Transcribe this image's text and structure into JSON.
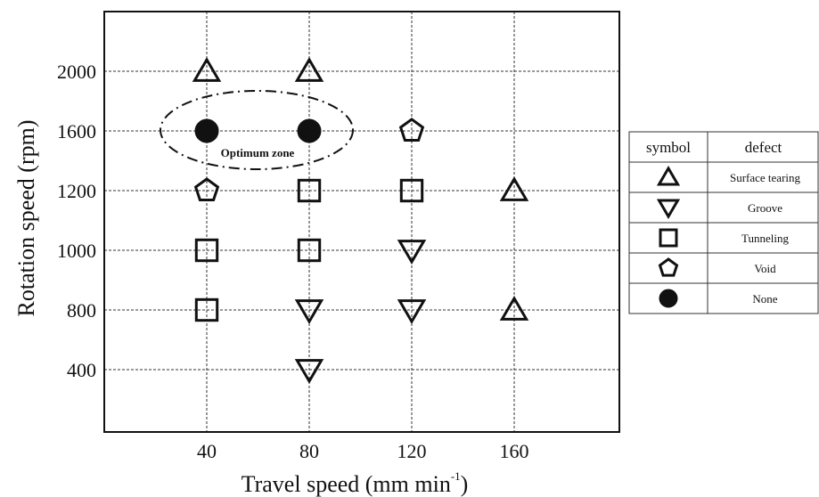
{
  "chart_data": {
    "type": "scatter",
    "xlabel": "Travel speed (mm min-1)",
    "xlabel_main": "Travel speed (mm min",
    "xlabel_sup": "-1",
    "xlabel_close": ")",
    "ylabel": "Rotation speed (rpm)",
    "x_ticks": [
      40,
      80,
      120,
      160
    ],
    "y_ticks": [
      2000,
      1600,
      1200,
      1000,
      800,
      400
    ],
    "grid": true,
    "series": [
      {
        "name": "Surface tearing",
        "marker": "triangle-up",
        "points": [
          [
            40,
            2000
          ],
          [
            80,
            2000
          ],
          [
            160,
            1200
          ],
          [
            160,
            800
          ]
        ]
      },
      {
        "name": "Groove",
        "marker": "triangle-down",
        "points": [
          [
            80,
            800
          ],
          [
            80,
            400
          ],
          [
            120,
            1000
          ],
          [
            120,
            800
          ]
        ]
      },
      {
        "name": "Tunneling",
        "marker": "square",
        "points": [
          [
            40,
            1000
          ],
          [
            40,
            800
          ],
          [
            80,
            1200
          ],
          [
            80,
            1000
          ],
          [
            120,
            1200
          ]
        ]
      },
      {
        "name": "Void",
        "marker": "pentagon",
        "points": [
          [
            40,
            1200
          ],
          [
            120,
            1600
          ]
        ]
      },
      {
        "name": "None",
        "marker": "circle-filled",
        "points": [
          [
            40,
            1600
          ],
          [
            80,
            1600
          ]
        ]
      }
    ],
    "annotation": {
      "text": "Optimum zone"
    },
    "legend": {
      "placement": "right",
      "headers": [
        "symbol",
        "defect"
      ],
      "rows": [
        {
          "marker": "triangle-up",
          "label": "Surface tearing"
        },
        {
          "marker": "triangle-down",
          "label": "Groove"
        },
        {
          "marker": "square",
          "label": "Tunneling"
        },
        {
          "marker": "pentagon",
          "label": "Void"
        },
        {
          "marker": "circle-filled",
          "label": "None"
        }
      ]
    }
  }
}
